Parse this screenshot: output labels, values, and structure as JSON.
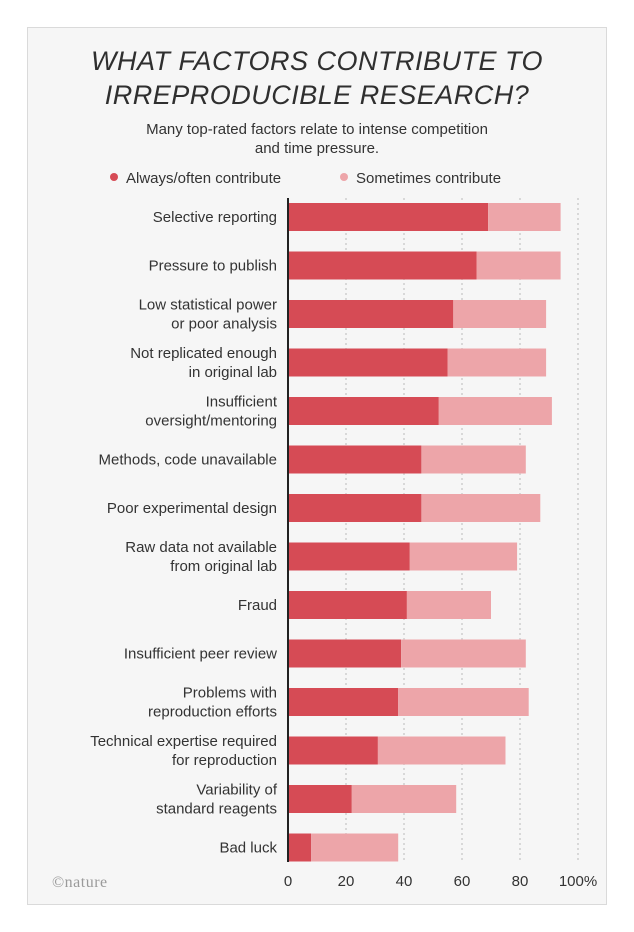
{
  "title_line1": "WHAT FACTORS CONTRIBUTE TO",
  "title_line2": "IRREPRODUCIBLE RESEARCH?",
  "subtitle_line1": "Many top-rated factors relate to intense competition",
  "subtitle_line2": "and time pressure.",
  "logo_text": "nature",
  "colors": {
    "always": "#d64b55",
    "sometimes": "#eda5a9",
    "axis": "#222222",
    "grid": "#bbbbbb"
  },
  "chart_data": {
    "type": "bar",
    "orientation": "horizontal",
    "stacked": true,
    "title": "WHAT FACTORS CONTRIBUTE TO IRREPRODUCIBLE RESEARCH?",
    "subtitle": "Many top-rated factors relate to intense competition and time pressure.",
    "legend_position": "top",
    "grid": true,
    "xlim": [
      0,
      100
    ],
    "x_ticks": [
      "0",
      "20",
      "40",
      "60",
      "80",
      "100%"
    ],
    "categories": [
      [
        "Selective reporting"
      ],
      [
        "Pressure to publish"
      ],
      [
        "Low statistical power",
        "or poor analysis"
      ],
      [
        "Not replicated enough",
        "in original lab"
      ],
      [
        "Insufficient",
        "oversight/mentoring"
      ],
      [
        "Methods, code unavailable"
      ],
      [
        "Poor experimental design"
      ],
      [
        "Raw data not available",
        "from original lab"
      ],
      [
        "Fraud"
      ],
      [
        "Insufficient peer review"
      ],
      [
        "Problems with",
        "reproduction efforts"
      ],
      [
        "Technical expertise required",
        "for reproduction"
      ],
      [
        "Variability of",
        "standard reagents"
      ],
      [
        "Bad luck"
      ]
    ],
    "series": [
      {
        "name": "Always/often contribute",
        "values": [
          69,
          65,
          57,
          55,
          52,
          46,
          46,
          42,
          41,
          39,
          38,
          31,
          22,
          8
        ]
      },
      {
        "name": "Sometimes contribute",
        "values": [
          25,
          29,
          32,
          34,
          39,
          36,
          41,
          37,
          29,
          43,
          45,
          44,
          36,
          30
        ]
      }
    ]
  }
}
